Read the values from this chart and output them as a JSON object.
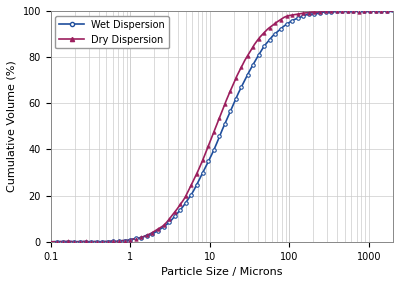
{
  "title": "",
  "xlabel": "Particle Size / Microns",
  "ylabel": "Cumulative Volume (%)",
  "xlim_log": [
    0.1,
    2000
  ],
  "ylim": [
    0,
    100
  ],
  "wet_color": "#1f4e9c",
  "dry_color": "#9c1f5e",
  "grid_color": "#cccccc",
  "legend_labels": [
    "Wet Dispersion",
    "Dry Dispersion"
  ],
  "background_color": "#f5f5f5"
}
